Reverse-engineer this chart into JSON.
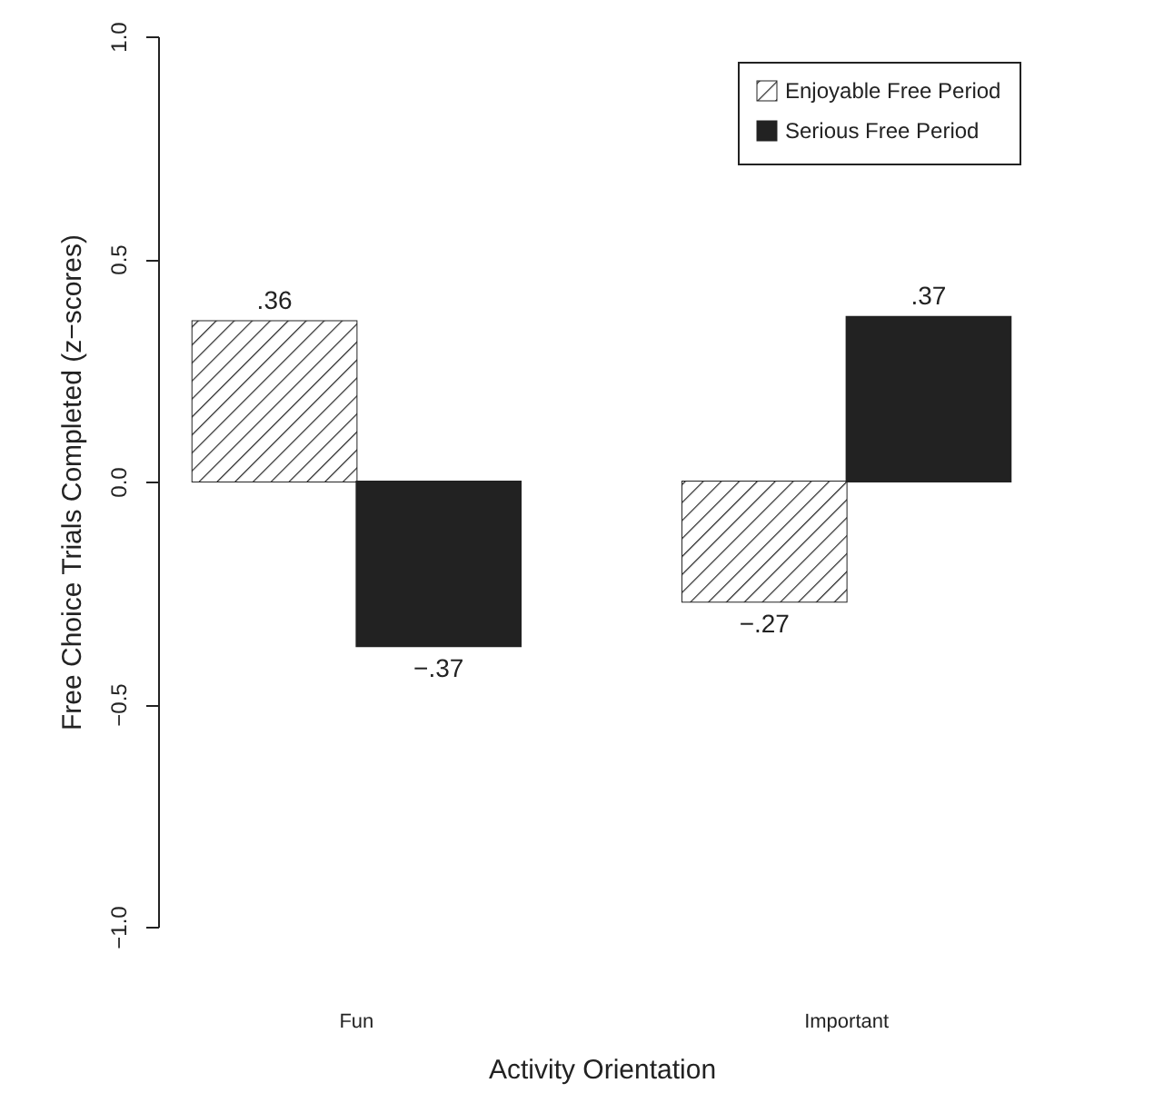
{
  "chart_data": {
    "type": "bar",
    "xlabel": "Activity Orientation",
    "ylabel": "Free Choice Trials Completed (z−scores)",
    "categories": [
      "Fun",
      "Important"
    ],
    "series": [
      {
        "name": "Enjoyable Free Period",
        "color": "#ffffff",
        "values": [
          0.36,
          -0.27
        ],
        "value_labels": [
          ".36",
          "−.27"
        ]
      },
      {
        "name": "Serious Free Period",
        "color": "#222222",
        "values": [
          -0.37,
          0.37
        ],
        "value_labels": [
          "−.37",
          ".37"
        ]
      }
    ],
    "ylim": [
      -1,
      1
    ],
    "yticks": [
      {
        "value": -1,
        "label": "−1.0"
      },
      {
        "value": -0.5,
        "label": "−0.5"
      },
      {
        "value": 0,
        "label": "0.0"
      },
      {
        "value": 0.5,
        "label": "0.5"
      },
      {
        "value": 1,
        "label": "1.0"
      }
    ],
    "legend": "top right",
    "grid": false
  }
}
